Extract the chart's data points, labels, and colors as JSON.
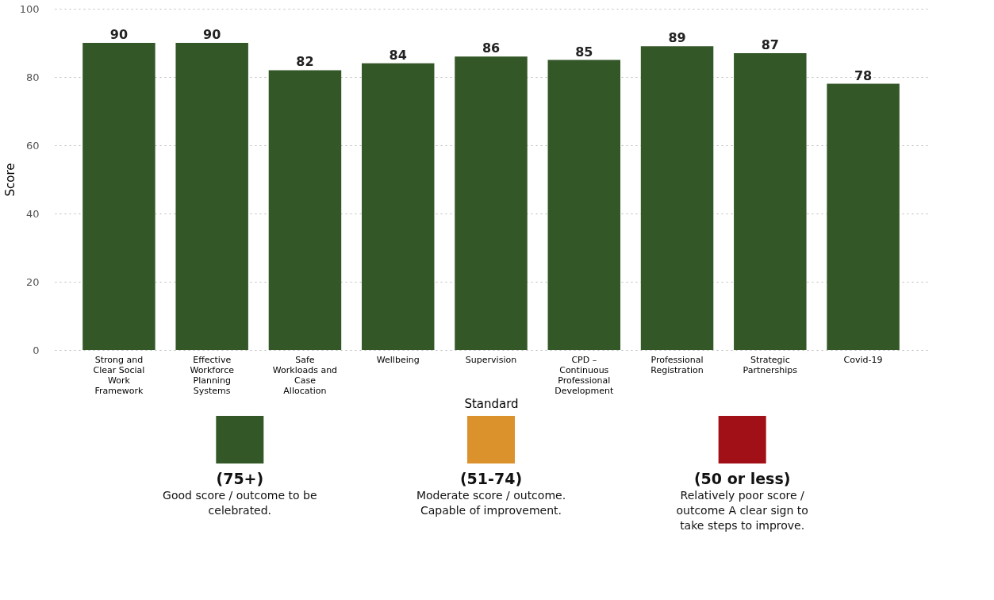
{
  "chart_data": {
    "type": "bar",
    "xlabel": "Standard",
    "ylabel": "Score",
    "categories": [
      "Strong and Clear Social Work Framework",
      "Effective Workforce Planning Systems",
      "Safe Workloads and Case Allocation",
      "Wellbeing",
      "Supervision",
      "CPD – Continuous Professional Development",
      "Professional Registration",
      "Strategic Partnerships",
      "Covid-19"
    ],
    "values": [
      90,
      90,
      82,
      84,
      86,
      85,
      89,
      87,
      78
    ],
    "color": "#335726",
    "annotations": [
      "(75+)",
      "Good score / outcome to be celebrated.",
      "(51-74)",
      "Moderate score / outcome. Capable of improvement.",
      "(50 or less)",
      "Relatively poor score / outcome A clear sign to take steps to improve."
    ],
    "ylim": [
      0,
      100
    ],
    "yticks": [
      0,
      20,
      40,
      60,
      80,
      100
    ],
    "grid": "y",
    "data_labels": true
  }
}
